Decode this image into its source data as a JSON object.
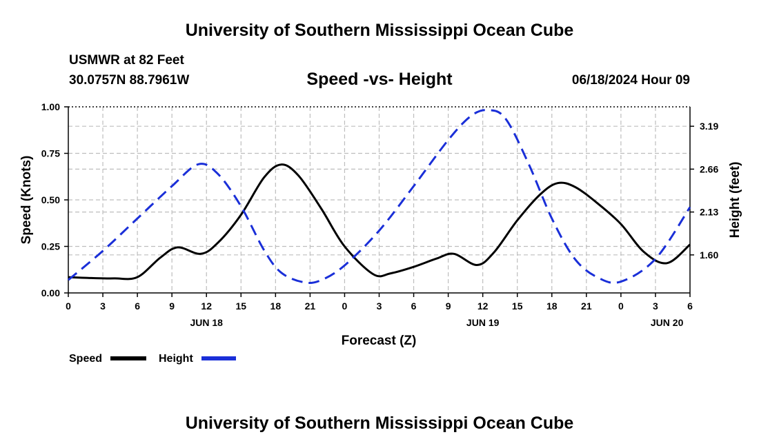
{
  "header": {
    "title": "University of Southern Mississippi Ocean Cube",
    "station": "USMWR at 82 Feet",
    "coords": "30.0757N  88.7961W",
    "subtitle": "Speed -vs- Height",
    "datetime": "06/18/2024 Hour 09"
  },
  "footer": {
    "title": "University of Southern Mississippi Ocean Cube"
  },
  "chart_data": {
    "type": "line",
    "title": "Speed -vs- Height",
    "xlabel": "Forecast (Z)",
    "ylabel": "Speed (Knots)",
    "y2label": "Height (feet)",
    "xlim": [
      0,
      54
    ],
    "ylim": [
      0,
      1.0
    ],
    "y2lim": [
      1.13,
      3.43
    ],
    "grid": true,
    "x_tick_values": [
      0,
      3,
      6,
      9,
      12,
      15,
      18,
      21,
      24,
      27,
      30,
      33,
      36,
      39,
      42,
      45,
      48,
      51,
      54
    ],
    "x_tick_labels": [
      "0",
      "3",
      "6",
      "9",
      "12",
      "15",
      "18",
      "21",
      "0",
      "3",
      "6",
      "9",
      "12",
      "15",
      "18",
      "21",
      "0",
      "3",
      "6"
    ],
    "day_labels": [
      {
        "x": 12,
        "label": "JUN 18"
      },
      {
        "x": 36,
        "label": "JUN 19"
      },
      {
        "x": 52,
        "label": "JUN 20"
      }
    ],
    "y_ticks": [
      0,
      0.25,
      0.5,
      0.75,
      1.0
    ],
    "y_tick_labels": [
      "0.00",
      "0.25",
      "0.50",
      "0.75",
      "1.00"
    ],
    "y2_ticks": [
      1.6,
      2.13,
      2.66,
      3.19
    ],
    "y2_tick_labels": [
      "1.60",
      "2.13",
      "2.66",
      "3.19"
    ],
    "series": [
      {
        "name": "Speed",
        "axis": "left",
        "color": "#000000",
        "dash": "solid",
        "x": [
          0,
          2,
          4,
          6,
          8,
          9.5,
          11.5,
          13,
          15,
          17,
          18.5,
          20,
          22,
          24,
          26.5,
          28,
          30,
          32,
          33.5,
          35.5,
          37,
          39,
          41,
          42.5,
          44,
          46,
          48,
          50,
          52,
          54
        ],
        "y": [
          0.085,
          0.08,
          0.078,
          0.085,
          0.19,
          0.245,
          0.21,
          0.27,
          0.42,
          0.62,
          0.69,
          0.63,
          0.45,
          0.25,
          0.1,
          0.105,
          0.14,
          0.185,
          0.21,
          0.15,
          0.22,
          0.39,
          0.53,
          0.59,
          0.57,
          0.48,
          0.37,
          0.22,
          0.16,
          0.26
        ]
      },
      {
        "name": "Height",
        "axis": "right",
        "color": "#1a2fd8",
        "dash": "dashed",
        "x": [
          0,
          3,
          6,
          9,
          11.3,
          13,
          15,
          17,
          18.5,
          20.5,
          22,
          24,
          27,
          30,
          33,
          35,
          36.5,
          38,
          40,
          42,
          44,
          46,
          48,
          51,
          54
        ],
        "y": [
          1.29,
          1.65,
          2.05,
          2.45,
          2.72,
          2.6,
          2.2,
          1.66,
          1.38,
          1.26,
          1.29,
          1.47,
          1.9,
          2.45,
          3.02,
          3.32,
          3.39,
          3.28,
          2.72,
          2.05,
          1.55,
          1.32,
          1.27,
          1.55,
          2.19
        ]
      }
    ],
    "legend": [
      {
        "label": "Speed",
        "color": "#000000",
        "dash": "solid"
      },
      {
        "label": "Height",
        "color": "#1a2fd8",
        "dash": "dashed"
      }
    ]
  }
}
